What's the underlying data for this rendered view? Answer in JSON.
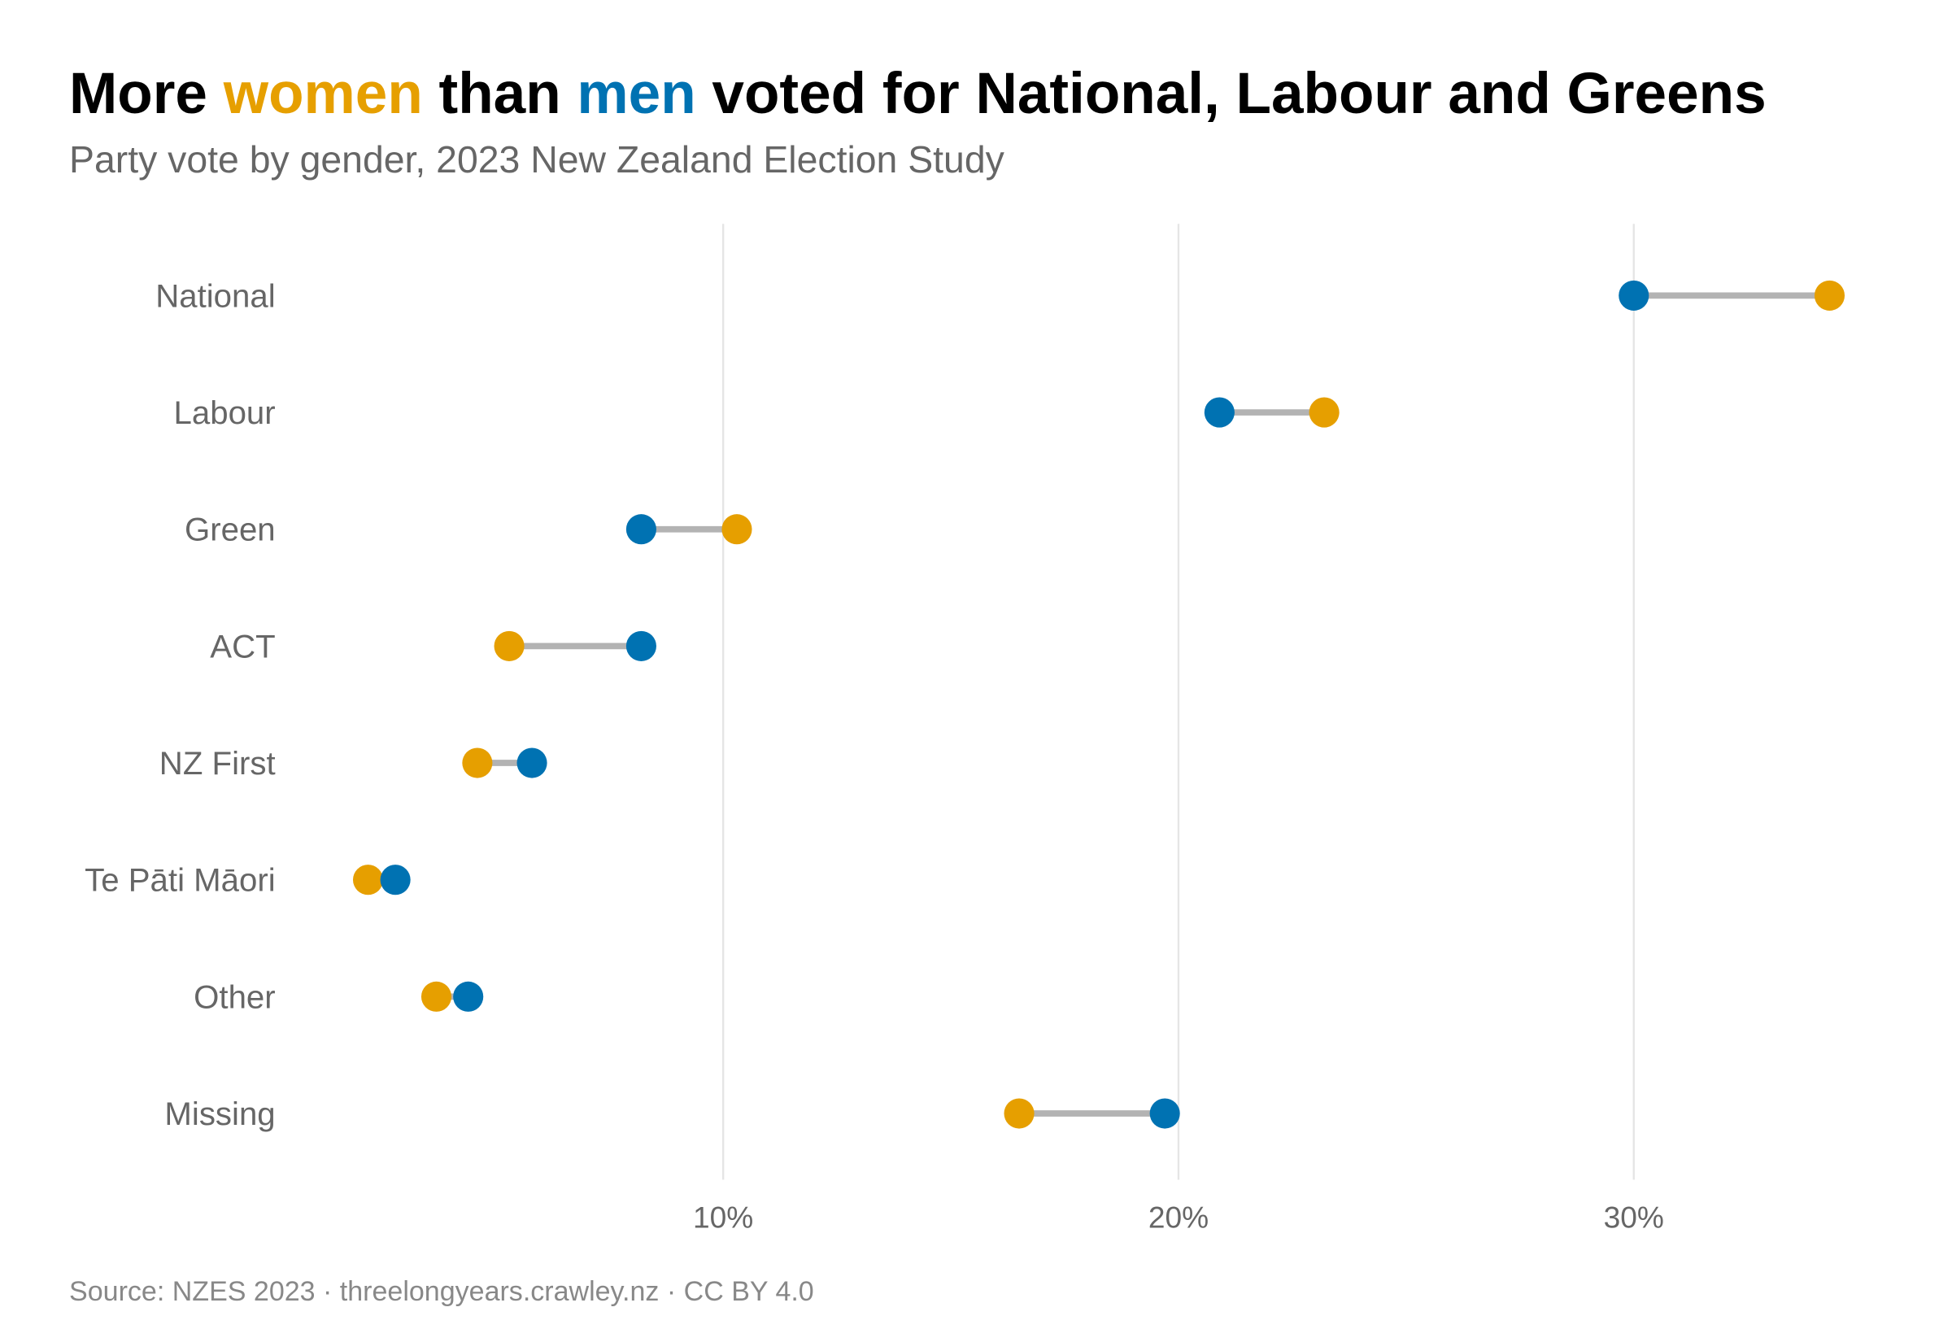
{
  "title": {
    "part1": "More ",
    "women": "women",
    "part2": " than ",
    "men": "men",
    "part3": " voted for National, Labour and Greens"
  },
  "subtitle": "Party vote by gender, 2023 New Zealand Election Study",
  "caption": "Source: NZES 2023 · threelongyears.crawley.nz · CC BY 4.0",
  "colors": {
    "women": "#E69F00",
    "men": "#0072B2",
    "connector": "#b3b3b3",
    "grid": "#e5e5e5"
  },
  "chart_data": {
    "type": "dumbbell",
    "title": "More women than men voted for National, Labour and Greens",
    "subtitle": "Party vote by gender, 2023 New Zealand Election Study",
    "xlabel": "",
    "ylabel": "",
    "x_ticks": [
      10,
      20,
      30
    ],
    "x_tick_labels": [
      "10%",
      "20%",
      "30%"
    ],
    "xlim": [
      0,
      36
    ],
    "grid": "vertical major",
    "categories": [
      "National",
      "Labour",
      "Green",
      "ACT",
      "NZ First",
      "Te Pāti Māori",
      "Other",
      "Missing"
    ],
    "series": [
      {
        "name": "women",
        "values": [
          34.3,
          23.2,
          10.3,
          5.3,
          4.6,
          2.2,
          3.7,
          16.5
        ]
      },
      {
        "name": "men",
        "values": [
          30.0,
          20.9,
          8.2,
          8.2,
          5.8,
          2.8,
          4.4,
          19.7
        ]
      }
    ]
  }
}
